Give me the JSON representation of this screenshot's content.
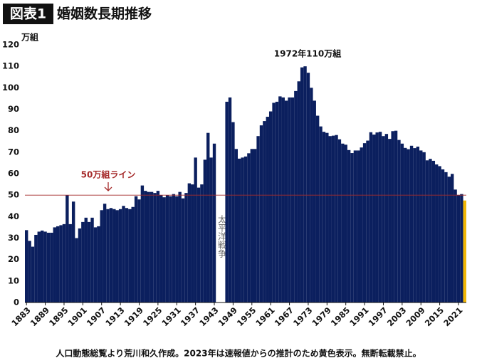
{
  "chart_data": {
    "type": "bar",
    "label": "図表1",
    "title": "婚姻数長期推移",
    "y_unit": "万組",
    "note": "人口動態総覧より荒川和久作成。2023年は速報値からの推計のため黄色表示。無断転載禁止。",
    "annotations": [
      {
        "text": "50万組ライン"
      },
      {
        "text": "1972年110万組"
      },
      {
        "text": "太平洋戦争"
      }
    ],
    "reference_line": {
      "value": 50,
      "color": "#a52a2a"
    },
    "xlim": [
      1882.5,
      2023.5
    ],
    "xticks": [
      1883,
      1889,
      1895,
      1901,
      1907,
      1913,
      1919,
      1925,
      1931,
      1937,
      1943,
      1949,
      1955,
      1961,
      1967,
      1973,
      1979,
      1985,
      1991,
      1997,
      2003,
      2009,
      2015,
      2021
    ],
    "ylim": [
      0,
      120
    ],
    "yticks": [
      0,
      10,
      20,
      30,
      40,
      50,
      60,
      70,
      80,
      90,
      100,
      110,
      120
    ],
    "grid": false,
    "series": [
      {
        "color": "#0b1f5e",
        "x": [
          1883,
          1884,
          1885,
          1886,
          1887,
          1888,
          1889,
          1890,
          1891,
          1892,
          1893,
          1894,
          1895,
          1896,
          1897,
          1898,
          1899,
          1900,
          1901,
          1902,
          1903,
          1904,
          1905,
          1906,
          1907,
          1908,
          1909,
          1910,
          1911,
          1912,
          1913,
          1914,
          1915,
          1916,
          1917,
          1918,
          1919,
          1920,
          1921,
          1922,
          1923,
          1924,
          1925,
          1926,
          1927,
          1928,
          1929,
          1930,
          1931,
          1932,
          1933,
          1934,
          1935,
          1936,
          1937,
          1938,
          1939,
          1940,
          1941,
          1942,
          1943,
          1944,
          1945,
          1946,
          1947,
          1948,
          1949,
          1950,
          1951,
          1952,
          1953,
          1954,
          1955,
          1956,
          1957,
          1958,
          1959,
          1960,
          1961,
          1962,
          1963,
          1964,
          1965,
          1966,
          1967,
          1968,
          1969,
          1970,
          1971,
          1972,
          1973,
          1974,
          1975,
          1976,
          1977,
          1978,
          1979,
          1980,
          1981,
          1982,
          1983,
          1984,
          1985,
          1986,
          1987,
          1988,
          1989,
          1990,
          1991,
          1992,
          1993,
          1994,
          1995,
          1996,
          1997,
          1998,
          1999,
          2000,
          2001,
          2002,
          2003,
          2004,
          2005,
          2006,
          2007,
          2008,
          2009,
          2010,
          2011,
          2012,
          2013,
          2014,
          2015,
          2016,
          2017,
          2018,
          2019,
          2020,
          2021,
          2022
        ],
        "values": [
          33.7,
          28.7,
          26,
          31.5,
          33,
          33.5,
          33,
          32.5,
          32.5,
          35,
          35.5,
          36,
          36.5,
          50,
          36.5,
          47,
          30,
          34.5,
          37.5,
          39.5,
          37.5,
          39.5,
          35,
          35.5,
          43,
          46,
          43.5,
          44,
          43.5,
          43,
          43.5,
          45,
          44,
          43.5,
          44.5,
          49.5,
          48,
          54.5,
          52,
          51.5,
          51.5,
          51,
          52,
          50,
          49,
          50,
          49.5,
          50.5,
          49.5,
          51.5,
          48.5,
          51,
          55.5,
          55,
          67.5,
          53.5,
          55,
          66.5,
          79,
          67.5,
          74,
          null,
          null,
          null,
          93.5,
          95.5,
          84,
          71.5,
          67,
          67.5,
          68,
          69.5,
          71.5,
          71.5,
          77.5,
          82.5,
          84.5,
          86.5,
          89,
          93,
          93.5,
          96,
          95.5,
          94,
          95.5,
          95.5,
          98.5,
          103,
          109.5,
          110,
          107,
          100,
          94,
          87,
          82,
          79.5,
          79,
          77.5,
          77.7,
          78,
          76,
          74,
          73.5,
          71,
          69.6,
          70.8,
          70.8,
          72.2,
          74.2,
          75.4,
          79.3,
          78.2,
          79.2,
          79.5,
          77.5,
          78.5,
          76.2,
          79.8,
          80,
          75.7,
          74,
          72,
          71.4,
          73,
          71.9,
          72.6,
          70.8,
          70,
          66.2,
          66.9,
          66,
          64.3,
          63.5,
          62,
          60.7,
          58.6,
          59.9,
          52.6,
          50.1,
          50.5
        ]
      },
      {
        "color": "#f2b705",
        "x": [
          2023
        ],
        "values": [
          47.5
        ]
      }
    ]
  }
}
